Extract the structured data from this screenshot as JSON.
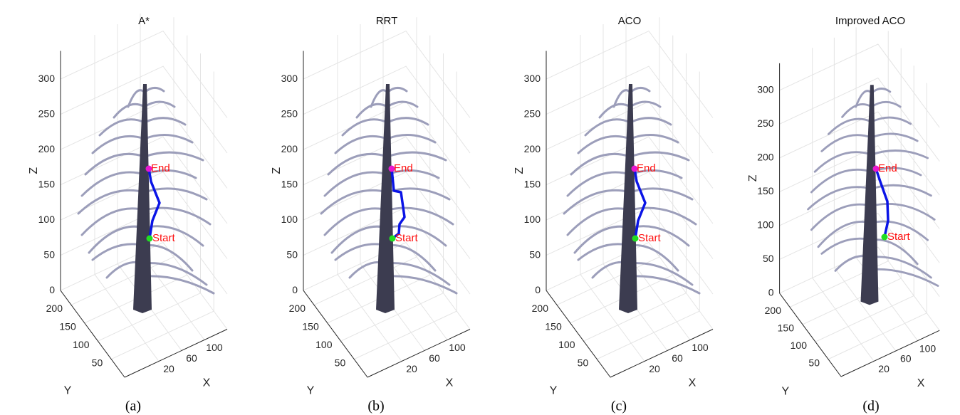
{
  "panels": [
    {
      "title": "A*",
      "caption": "(a)",
      "xlabel": "X",
      "ylabel": "Y",
      "zlabel": "Z",
      "start_label": "Start",
      "end_label": "End",
      "xlim": [
        -40,
        140
      ],
      "ylim": [
        0,
        240
      ],
      "zlim": [
        0,
        340
      ],
      "xticks": [
        20,
        60,
        100
      ],
      "yticks": [
        50,
        100,
        150,
        200
      ],
      "zticks": [
        0,
        50,
        100,
        150,
        200,
        250,
        300
      ]
    },
    {
      "title": "RRT",
      "caption": "(b)",
      "xlabel": "X",
      "ylabel": "Y",
      "zlabel": "Z",
      "start_label": "Start",
      "end_label": "End",
      "xlim": [
        -40,
        140
      ],
      "ylim": [
        0,
        240
      ],
      "zlim": [
        0,
        340
      ],
      "xticks": [
        20,
        60,
        100
      ],
      "yticks": [
        50,
        100,
        150,
        200
      ],
      "zticks": [
        0,
        50,
        100,
        150,
        200,
        250,
        300
      ]
    },
    {
      "title": "ACO",
      "caption": "(c)",
      "xlabel": "X",
      "ylabel": "Y",
      "zlabel": "Z",
      "start_label": "Start",
      "end_label": "End",
      "xlim": [
        -40,
        140
      ],
      "ylim": [
        0,
        240
      ],
      "zlim": [
        0,
        340
      ],
      "xticks": [
        20,
        60,
        100
      ],
      "yticks": [
        50,
        100,
        150,
        200
      ],
      "zticks": [
        0,
        50,
        100,
        150,
        200,
        250,
        300
      ]
    },
    {
      "title": "Improved ACO",
      "caption": "(d)",
      "xlabel": "X",
      "ylabel": "Y",
      "zlabel": "Z",
      "start_label": "Start",
      "end_label": "End",
      "xlim": [
        -40,
        140
      ],
      "ylim": [
        0,
        240
      ],
      "zlim": [
        0,
        340
      ],
      "xticks": [
        20,
        60,
        100
      ],
      "yticks": [
        50,
        100,
        150,
        200
      ],
      "zticks": [
        0,
        50,
        100,
        150,
        200,
        250,
        300
      ]
    }
  ]
}
